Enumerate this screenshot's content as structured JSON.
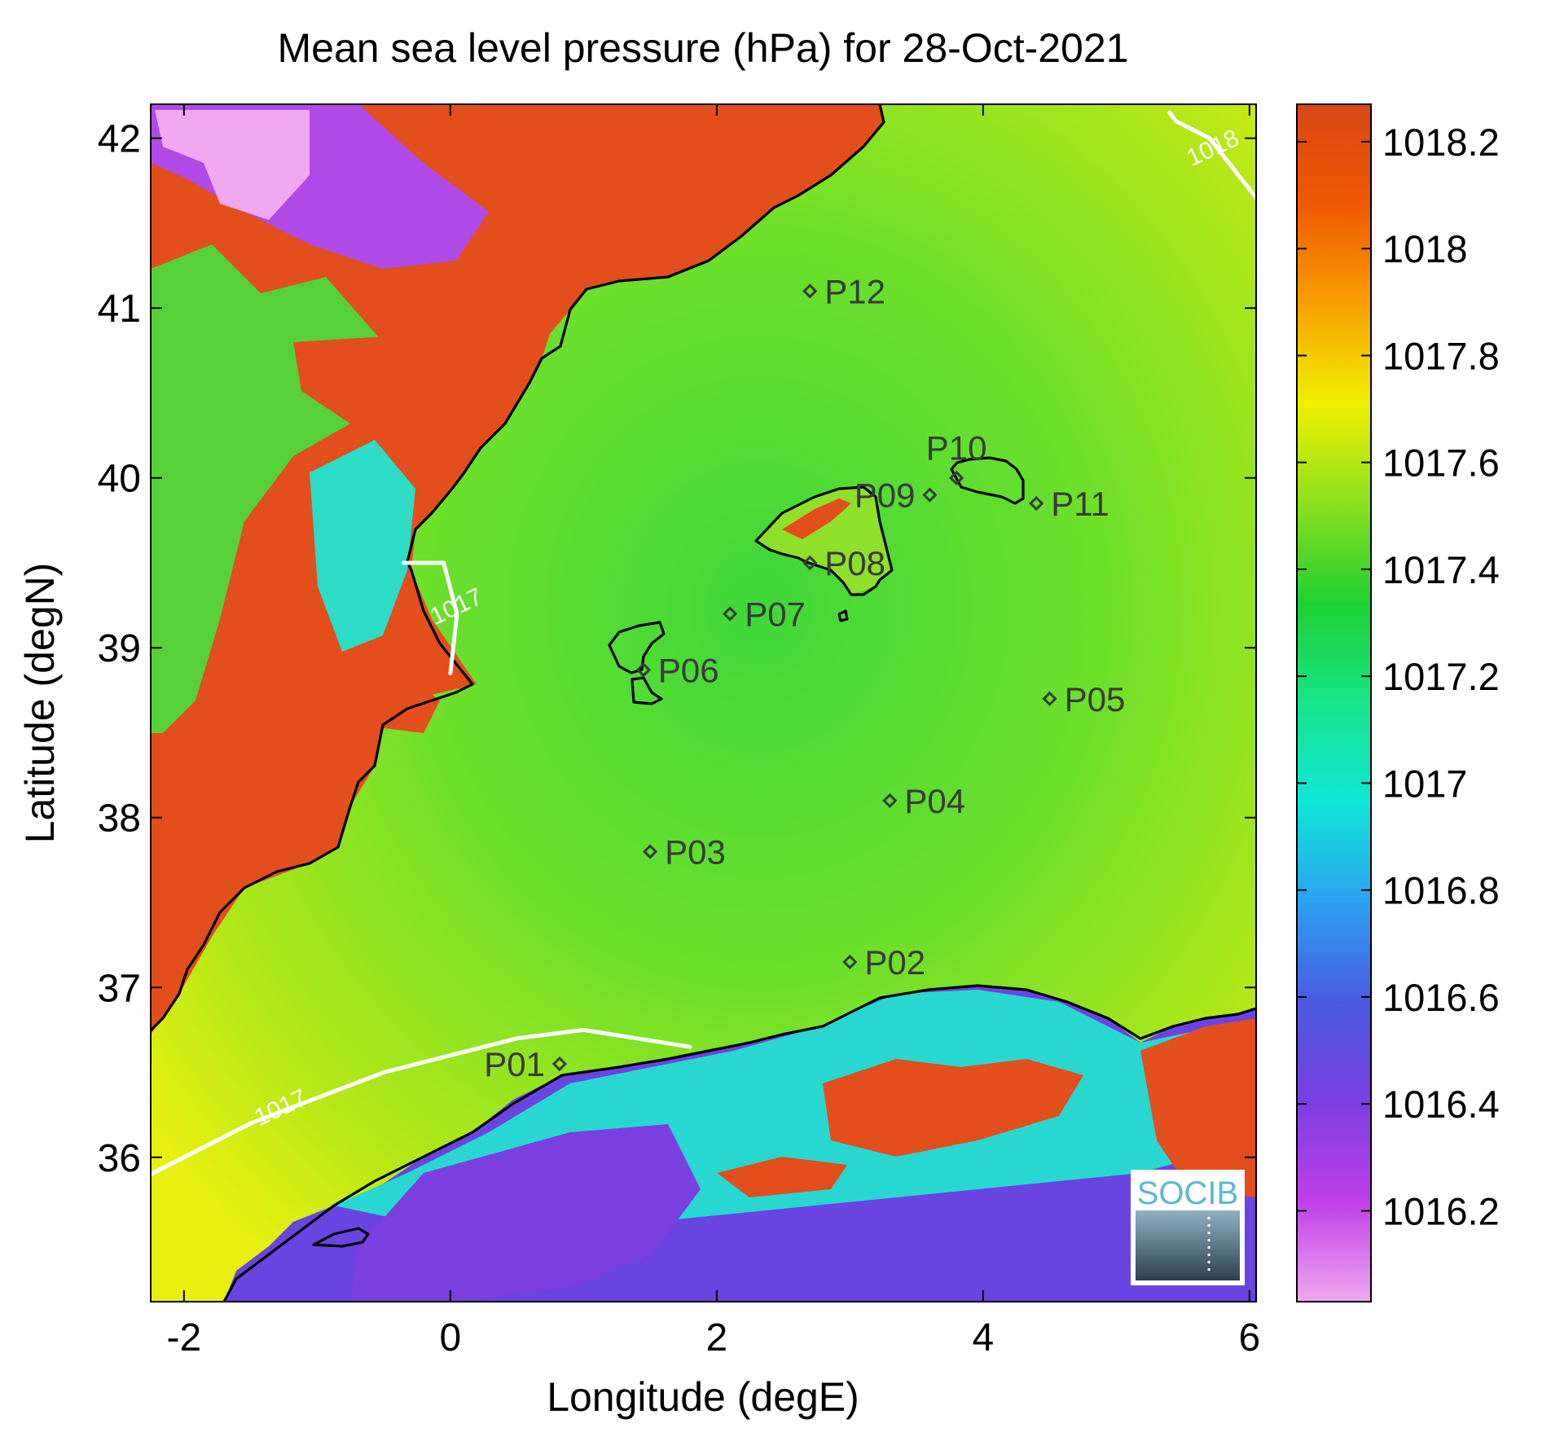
{
  "chart_data": {
    "type": "heatmap",
    "title": "Mean sea level pressure (hPa) for 28-Oct-2021",
    "xlabel": "Longitude (degE)",
    "ylabel": "Latitude (degN)",
    "xlim": [
      -2.25,
      6.05
    ],
    "ylim": [
      35.15,
      42.2
    ],
    "xticks": [
      -2,
      0,
      2,
      4,
      6
    ],
    "xtick_labels": [
      "-2",
      "0",
      "2",
      "4",
      "6"
    ],
    "yticks": [
      36,
      37,
      38,
      39,
      40,
      41,
      42
    ],
    "ytick_labels": [
      "36",
      "37",
      "38",
      "39",
      "40",
      "41",
      "42"
    ],
    "colorbar": {
      "range": [
        1016.03,
        1018.27
      ],
      "ticks": [
        1016.2,
        1016.4,
        1016.6,
        1016.8,
        1017.0,
        1017.2,
        1017.4,
        1017.6,
        1017.8,
        1018.0,
        1018.2
      ],
      "tick_labels": [
        "1016.2",
        "1016.4",
        "1016.6",
        "1016.8",
        "1017",
        "1017.2",
        "1017.4",
        "1017.6",
        "1017.8",
        "1018",
        "1018.2"
      ],
      "colormap": [
        "#f0a8f0",
        "#c040e8",
        "#7a3ee0",
        "#4a5ae0",
        "#2ea0f0",
        "#10e6d8",
        "#18e48a",
        "#20d030",
        "#8ce020",
        "#f0f000",
        "#f8a000",
        "#f05800",
        "#d84818"
      ]
    },
    "contours": [
      {
        "level_label": "1017",
        "points": [
          [
            -2.25,
            35.9
          ],
          [
            -1.5,
            36.2
          ],
          [
            -0.5,
            36.5
          ],
          [
            0.5,
            36.7
          ],
          [
            1.0,
            36.75
          ],
          [
            1.8,
            36.65
          ]
        ],
        "label_at": [
          -1.25,
          36.25
        ]
      },
      {
        "level_label": "1017",
        "points": [
          [
            -0.35,
            39.5
          ],
          [
            -0.05,
            39.5
          ],
          [
            0.05,
            39.2
          ],
          [
            0.0,
            38.85
          ]
        ],
        "label_at": [
          0.07,
          39.2
        ]
      },
      {
        "level_label": "1018",
        "points": [
          [
            5.4,
            42.15
          ],
          [
            5.45,
            42.1
          ],
          [
            5.7,
            42.0
          ],
          [
            5.95,
            41.75
          ],
          [
            6.05,
            41.65
          ]
        ],
        "label_at": [
          5.75,
          41.9
        ]
      }
    ],
    "stations": [
      {
        "name": "P01",
        "lon": 0.82,
        "lat": 36.55,
        "label_side": "left"
      },
      {
        "name": "P02",
        "lon": 3.0,
        "lat": 37.15,
        "label_side": "right"
      },
      {
        "name": "P03",
        "lon": 1.5,
        "lat": 37.8,
        "label_side": "right"
      },
      {
        "name": "P04",
        "lon": 3.3,
        "lat": 38.1,
        "label_side": "right"
      },
      {
        "name": "P05",
        "lon": 4.5,
        "lat": 38.7,
        "label_side": "right"
      },
      {
        "name": "P06",
        "lon": 1.45,
        "lat": 38.87,
        "label_side": "right"
      },
      {
        "name": "P07",
        "lon": 2.1,
        "lat": 39.2,
        "label_side": "right"
      },
      {
        "name": "P08",
        "lon": 2.7,
        "lat": 39.5,
        "label_side": "right"
      },
      {
        "name": "P09",
        "lon": 3.6,
        "lat": 39.9,
        "label_side": "left"
      },
      {
        "name": "P10",
        "lon": 3.8,
        "lat": 40.0,
        "label_side": "above"
      },
      {
        "name": "P11",
        "lon": 4.4,
        "lat": 39.85,
        "label_side": "right"
      },
      {
        "name": "P12",
        "lon": 2.7,
        "lat": 41.1,
        "label_side": "right"
      }
    ]
  },
  "logo": {
    "text": "SOCIB"
  }
}
